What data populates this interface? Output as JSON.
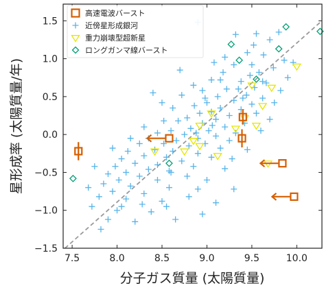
{
  "chart_data": {
    "type": "scatter",
    "xlabel": "分子ガス質量 (太陽質量)",
    "ylabel": "星形成率 (太陽質量/年)",
    "xlim": [
      7.4,
      10.28
    ],
    "ylim": [
      -1.5,
      1.72
    ],
    "x_ticks": [
      "7.5",
      "8.0",
      "8.5",
      "9.0",
      "9.5",
      "10.0"
    ],
    "y_ticks": [
      "−1.5",
      "−1.0",
      "−0.5",
      "0.0",
      "0.5",
      "1.0",
      "1.5"
    ],
    "x_tick_values": [
      7.5,
      8.0,
      8.5,
      9.0,
      9.5,
      10.0
    ],
    "y_tick_values": [
      -1.5,
      -1.0,
      -0.5,
      0.0,
      0.5,
      1.0,
      1.5
    ],
    "grid": false,
    "legend_position": "top-left",
    "reference_line": {
      "style": "dashed",
      "color": "#999999",
      "from": [
        7.42,
        -1.5
      ],
      "to": [
        10.28,
        1.5
      ]
    },
    "series": [
      {
        "name": "高速電波バースト",
        "marker": "square",
        "color": "#d55e00",
        "points": [
          {
            "x": 7.57,
            "y": -0.22,
            "yerr": 0.12
          },
          {
            "x": 8.58,
            "y": -0.05,
            "arrow": "left"
          },
          {
            "x": 9.4,
            "y": 0.23,
            "yerr": 0.1
          },
          {
            "x": 9.39,
            "y": -0.05,
            "yerr": 0.12
          },
          {
            "x": 9.84,
            "y": -0.38,
            "arrow": "left"
          },
          {
            "x": 9.97,
            "y": -0.82,
            "arrow": "left"
          }
        ]
      },
      {
        "name": "近傍星形成銀河",
        "marker": "plus",
        "color": "#56b4e9",
        "points": [
          {
            "x": 8.9,
            "y": 1.48
          },
          {
            "x": 9.32,
            "y": 1.32
          },
          {
            "x": 9.55,
            "y": 1.33
          },
          {
            "x": 9.7,
            "y": 1.25
          },
          {
            "x": 9.45,
            "y": 1.08
          },
          {
            "x": 9.63,
            "y": 1.05
          },
          {
            "x": 9.86,
            "y": 0.98
          },
          {
            "x": 9.2,
            "y": 1.02
          },
          {
            "x": 9.3,
            "y": 0.92
          },
          {
            "x": 9.74,
            "y": 0.88
          },
          {
            "x": 9.58,
            "y": 0.82
          },
          {
            "x": 9.48,
            "y": 0.78
          },
          {
            "x": 9.18,
            "y": 0.82
          },
          {
            "x": 9.9,
            "y": 0.75
          },
          {
            "x": 9.38,
            "y": 0.7
          },
          {
            "x": 9.66,
            "y": 0.68
          },
          {
            "x": 9.05,
            "y": 0.72
          },
          {
            "x": 9.53,
            "y": 0.62
          },
          {
            "x": 9.82,
            "y": 0.58
          },
          {
            "x": 9.22,
            "y": 0.6
          },
          {
            "x": 8.95,
            "y": 0.58
          },
          {
            "x": 9.44,
            "y": 0.52
          },
          {
            "x": 9.12,
            "y": 0.5
          },
          {
            "x": 9.62,
            "y": 0.48
          },
          {
            "x": 8.72,
            "y": 0.52
          },
          {
            "x": 9.3,
            "y": 0.45
          },
          {
            "x": 9.0,
            "y": 0.42
          },
          {
            "x": 9.5,
            "y": 0.4
          },
          {
            "x": 8.86,
            "y": 0.38
          },
          {
            "x": 9.75,
            "y": 0.42
          },
          {
            "x": 9.15,
            "y": 0.35
          },
          {
            "x": 9.38,
            "y": 0.33
          },
          {
            "x": 8.62,
            "y": 0.35
          },
          {
            "x": 9.05,
            "y": 0.3
          },
          {
            "x": 8.92,
            "y": 0.28
          },
          {
            "x": 9.55,
            "y": 0.28
          },
          {
            "x": 9.25,
            "y": 0.25
          },
          {
            "x": 8.78,
            "y": 0.22
          },
          {
            "x": 9.1,
            "y": 0.2
          },
          {
            "x": 8.68,
            "y": 0.18
          },
          {
            "x": 9.42,
            "y": 0.15
          },
          {
            "x": 8.95,
            "y": 0.15
          },
          {
            "x": 8.52,
            "y": 0.18
          },
          {
            "x": 9.2,
            "y": 0.1
          },
          {
            "x": 8.82,
            "y": 0.08
          },
          {
            "x": 9.02,
            "y": 0.05
          },
          {
            "x": 8.6,
            "y": 0.05
          },
          {
            "x": 9.32,
            "y": 0.02
          },
          {
            "x": 8.75,
            "y": 0.0
          },
          {
            "x": 8.45,
            "y": 0.02
          },
          {
            "x": 9.1,
            "y": -0.02
          },
          {
            "x": 8.9,
            "y": -0.05
          },
          {
            "x": 8.35,
            "y": -0.05
          },
          {
            "x": 8.66,
            "y": -0.08
          },
          {
            "x": 9.25,
            "y": -0.08
          },
          {
            "x": 8.52,
            "y": -0.12
          },
          {
            "x": 8.98,
            "y": -0.12
          },
          {
            "x": 8.25,
            "y": -0.12
          },
          {
            "x": 8.8,
            "y": -0.15
          },
          {
            "x": 9.15,
            "y": -0.18
          },
          {
            "x": 8.42,
            "y": -0.2
          },
          {
            "x": 8.62,
            "y": -0.22
          },
          {
            "x": 8.12,
            "y": -0.22
          },
          {
            "x": 8.9,
            "y": -0.25
          },
          {
            "x": 8.3,
            "y": -0.28
          },
          {
            "x": 9.05,
            "y": -0.3
          },
          {
            "x": 8.55,
            "y": -0.3
          },
          {
            "x": 8.05,
            "y": -0.32
          },
          {
            "x": 8.72,
            "y": -0.35
          },
          {
            "x": 8.2,
            "y": -0.38
          },
          {
            "x": 8.45,
            "y": -0.4
          },
          {
            "x": 7.98,
            "y": -0.42
          },
          {
            "x": 8.85,
            "y": -0.42
          },
          {
            "x": 8.35,
            "y": -0.46
          },
          {
            "x": 8.1,
            "y": -0.5
          },
          {
            "x": 8.6,
            "y": -0.5
          },
          {
            "x": 7.9,
            "y": -0.52
          },
          {
            "x": 8.25,
            "y": -0.55
          },
          {
            "x": 8.78,
            "y": -0.55
          },
          {
            "x": 8.02,
            "y": -0.6
          },
          {
            "x": 8.45,
            "y": -0.6
          },
          {
            "x": 7.85,
            "y": -0.65
          },
          {
            "x": 8.15,
            "y": -0.68
          },
          {
            "x": 8.58,
            "y": -0.7
          },
          {
            "x": 7.95,
            "y": -0.75
          },
          {
            "x": 8.3,
            "y": -0.78
          },
          {
            "x": 8.9,
            "y": -0.72
          },
          {
            "x": 7.8,
            "y": -0.82
          },
          {
            "x": 8.1,
            "y": -0.85
          },
          {
            "x": 8.5,
            "y": -0.88
          },
          {
            "x": 7.72,
            "y": -0.95
          },
          {
            "x": 8.0,
            "y": -1.0
          },
          {
            "x": 8.38,
            "y": -1.02
          },
          {
            "x": 7.9,
            "y": -1.12
          },
          {
            "x": 8.2,
            "y": -1.15
          },
          {
            "x": 7.82,
            "y": -1.25
          },
          {
            "x": 8.55,
            "y": -0.95
          },
          {
            "x": 9.0,
            "y": -0.6
          },
          {
            "x": 9.2,
            "y": -0.45
          },
          {
            "x": 9.45,
            "y": -0.2
          },
          {
            "x": 9.3,
            "y": -0.72
          },
          {
            "x": 8.95,
            "y": -1.05
          },
          {
            "x": 9.6,
            "y": 0.05
          },
          {
            "x": 9.7,
            "y": 0.2
          },
          {
            "x": 9.35,
            "y": 0.6
          },
          {
            "x": 8.85,
            "y": 0.65
          },
          {
            "x": 8.5,
            "y": 0.42
          },
          {
            "x": 8.3,
            "y": 0.1
          },
          {
            "x": 8.15,
            "y": -0.05
          },
          {
            "x": 7.75,
            "y": -0.42
          },
          {
            "x": 7.68,
            "y": -0.7
          },
          {
            "x": 9.08,
            "y": 0.95
          },
          {
            "x": 9.52,
            "y": 1.18
          },
          {
            "x": 9.8,
            "y": 1.35
          },
          {
            "x": 9.96,
            "y": 0.95
          },
          {
            "x": 9.28,
            "y": -0.32
          },
          {
            "x": 8.65,
            "y": -1.12
          },
          {
            "x": 8.4,
            "y": 0.55
          },
          {
            "x": 9.15,
            "y": 0.72
          },
          {
            "x": 8.7,
            "y": 0.85
          },
          {
            "x": 9.4,
            "y": 0.48
          },
          {
            "x": 9.1,
            "y": -0.9
          },
          {
            "x": 8.28,
            "y": -0.92
          },
          {
            "x": 7.95,
            "y": -0.18
          },
          {
            "x": 8.05,
            "y": -0.95
          },
          {
            "x": 8.8,
            "y": -0.82
          },
          {
            "x": 9.5,
            "y": 0.92
          },
          {
            "x": 9.62,
            "y": 0.7
          },
          {
            "x": 8.98,
            "y": 0.48
          },
          {
            "x": 8.58,
            "y": -0.48
          },
          {
            "x": 8.88,
            "y": 0.02
          },
          {
            "x": 9.06,
            "y": 0.12
          }
        ]
      },
      {
        "name": "重力崩壊型超新星",
        "marker": "triangle-down",
        "color": "#e6e600",
        "points": [
          {
            "x": 10.0,
            "y": 0.9
          },
          {
            "x": 9.72,
            "y": 0.62
          },
          {
            "x": 9.5,
            "y": 0.65
          },
          {
            "x": 9.62,
            "y": 0.38
          },
          {
            "x": 9.42,
            "y": 0.22
          },
          {
            "x": 9.55,
            "y": 0.12
          },
          {
            "x": 9.05,
            "y": 0.28
          },
          {
            "x": 8.92,
            "y": 0.12
          },
          {
            "x": 8.85,
            "y": -0.08
          },
          {
            "x": 8.75,
            "y": -0.22
          },
          {
            "x": 8.92,
            "y": -0.15
          },
          {
            "x": 9.12,
            "y": -0.28
          },
          {
            "x": 8.42,
            "y": -0.22
          },
          {
            "x": 9.32,
            "y": 0.08
          },
          {
            "x": 9.68,
            "y": -0.38
          }
        ]
      },
      {
        "name": "ロングガンマ線バースト",
        "marker": "diamond",
        "color": "#009e73",
        "points": [
          {
            "x": 9.88,
            "y": 1.42
          },
          {
            "x": 10.26,
            "y": 1.36
          },
          {
            "x": 9.27,
            "y": 1.19
          },
          {
            "x": 9.8,
            "y": 1.13
          },
          {
            "x": 9.36,
            "y": 0.98
          },
          {
            "x": 9.55,
            "y": 0.73
          },
          {
            "x": 8.58,
            "y": -0.38
          },
          {
            "x": 7.51,
            "y": -0.58
          }
        ]
      }
    ]
  }
}
